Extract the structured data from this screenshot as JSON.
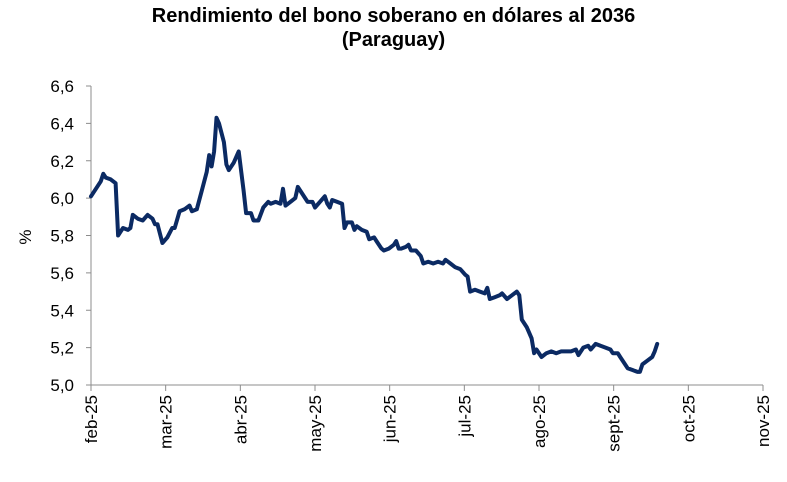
{
  "chart_data": {
    "type": "line",
    "title_line1": "Rendimiento del bono soberano en dólares al 2036",
    "title_line2": "(Paraguay)",
    "xlabel": "",
    "ylabel": "%",
    "ylim": [
      5.0,
      6.6
    ],
    "y_ticks": [
      "5,0",
      "5,2",
      "5,4",
      "5,6",
      "5,8",
      "6,0",
      "6,2",
      "6,4",
      "6,6"
    ],
    "x_ticks": [
      "feb-25",
      "mar-25",
      "abr-25",
      "may-25",
      "jun-25",
      "jul-25",
      "ago-25",
      "sept-25",
      "oct-25",
      "nov-25"
    ],
    "grid": false,
    "legend": "none",
    "line_color": "#0b2a63",
    "series": [
      {
        "values": [
          [
            0,
            6.01
          ],
          [
            2,
            6.05
          ],
          [
            4,
            6.09
          ],
          [
            5,
            6.13
          ],
          [
            6,
            6.11
          ],
          [
            8,
            6.1
          ],
          [
            10,
            6.08
          ],
          [
            11,
            5.8
          ],
          [
            12,
            5.82
          ],
          [
            13,
            5.84
          ],
          [
            15,
            5.83
          ],
          [
            16,
            5.84
          ],
          [
            17,
            5.91
          ],
          [
            19,
            5.89
          ],
          [
            21,
            5.88
          ],
          [
            23,
            5.91
          ],
          [
            25,
            5.89
          ],
          [
            26,
            5.86
          ],
          [
            27,
            5.86
          ],
          [
            29,
            5.76
          ],
          [
            31,
            5.79
          ],
          [
            33,
            5.84
          ],
          [
            34,
            5.84
          ],
          [
            36,
            5.93
          ],
          [
            38,
            5.94
          ],
          [
            40,
            5.96
          ],
          [
            41,
            5.93
          ],
          [
            43,
            5.94
          ],
          [
            45,
            6.04
          ],
          [
            47,
            6.14
          ],
          [
            48,
            6.23
          ],
          [
            49,
            6.17
          ],
          [
            50,
            6.25
          ],
          [
            51,
            6.43
          ],
          [
            52,
            6.4
          ],
          [
            54,
            6.3
          ],
          [
            55,
            6.18
          ],
          [
            56,
            6.15
          ],
          [
            58,
            6.19
          ],
          [
            60,
            6.25
          ],
          [
            62,
            6.04
          ],
          [
            63,
            5.92
          ],
          [
            65,
            5.92
          ],
          [
            66,
            5.88
          ],
          [
            68,
            5.88
          ],
          [
            70,
            5.95
          ],
          [
            72,
            5.98
          ],
          [
            73,
            5.97
          ],
          [
            75,
            5.98
          ],
          [
            77,
            5.97
          ],
          [
            78,
            6.05
          ],
          [
            79,
            5.96
          ],
          [
            81,
            5.98
          ],
          [
            83,
            6.0
          ],
          [
            84,
            6.06
          ],
          [
            86,
            6.02
          ],
          [
            88,
            5.98
          ],
          [
            90,
            5.98
          ],
          [
            91,
            5.95
          ],
          [
            93,
            5.98
          ],
          [
            95,
            6.01
          ],
          [
            96,
            5.97
          ],
          [
            97,
            5.95
          ],
          [
            98,
            5.99
          ],
          [
            100,
            5.98
          ],
          [
            102,
            5.97
          ],
          [
            103,
            5.84
          ],
          [
            104,
            5.87
          ],
          [
            106,
            5.87
          ],
          [
            107,
            5.83
          ],
          [
            108,
            5.85
          ],
          [
            110,
            5.83
          ],
          [
            112,
            5.82
          ],
          [
            113,
            5.78
          ],
          [
            115,
            5.79
          ],
          [
            116,
            5.77
          ],
          [
            118,
            5.73
          ],
          [
            119,
            5.72
          ],
          [
            121,
            5.73
          ],
          [
            123,
            5.75
          ],
          [
            124,
            5.77
          ],
          [
            125,
            5.73
          ],
          [
            126,
            5.73
          ],
          [
            128,
            5.74
          ],
          [
            129,
            5.75
          ],
          [
            130,
            5.72
          ],
          [
            132,
            5.72
          ],
          [
            134,
            5.69
          ],
          [
            135,
            5.65
          ],
          [
            137,
            5.66
          ],
          [
            139,
            5.65
          ],
          [
            141,
            5.66
          ],
          [
            143,
            5.65
          ],
          [
            144,
            5.67
          ],
          [
            146,
            5.65
          ],
          [
            148,
            5.63
          ],
          [
            150,
            5.62
          ],
          [
            152,
            5.59
          ],
          [
            153,
            5.58
          ],
          [
            154,
            5.5
          ],
          [
            156,
            5.51
          ],
          [
            158,
            5.5
          ],
          [
            160,
            5.49
          ],
          [
            161,
            5.52
          ],
          [
            162,
            5.46
          ],
          [
            164,
            5.47
          ],
          [
            166,
            5.48
          ],
          [
            167,
            5.49
          ],
          [
            169,
            5.46
          ],
          [
            171,
            5.48
          ],
          [
            173,
            5.5
          ],
          [
            174,
            5.48
          ],
          [
            175,
            5.35
          ],
          [
            177,
            5.31
          ],
          [
            179,
            5.25
          ],
          [
            180,
            5.17
          ],
          [
            181,
            5.19
          ],
          [
            183,
            5.15
          ],
          [
            185,
            5.17
          ],
          [
            187,
            5.18
          ],
          [
            189,
            5.17
          ],
          [
            191,
            5.18
          ],
          [
            193,
            5.18
          ],
          [
            195,
            5.18
          ],
          [
            197,
            5.19
          ],
          [
            198,
            5.16
          ],
          [
            200,
            5.2
          ],
          [
            202,
            5.21
          ],
          [
            203,
            5.19
          ],
          [
            205,
            5.22
          ],
          [
            207,
            5.21
          ],
          [
            209,
            5.2
          ],
          [
            211,
            5.19
          ],
          [
            212,
            5.17
          ],
          [
            214,
            5.17
          ],
          [
            215,
            5.15
          ],
          [
            216,
            5.13
          ],
          [
            218,
            5.09
          ],
          [
            220,
            5.08
          ],
          [
            222,
            5.07
          ],
          [
            223,
            5.07
          ],
          [
            224,
            5.11
          ],
          [
            226,
            5.13
          ],
          [
            228,
            5.15
          ],
          [
            229,
            5.18
          ],
          [
            230,
            5.22
          ]
        ]
      }
    ],
    "x_range_days": [
      0,
      273
    ]
  }
}
